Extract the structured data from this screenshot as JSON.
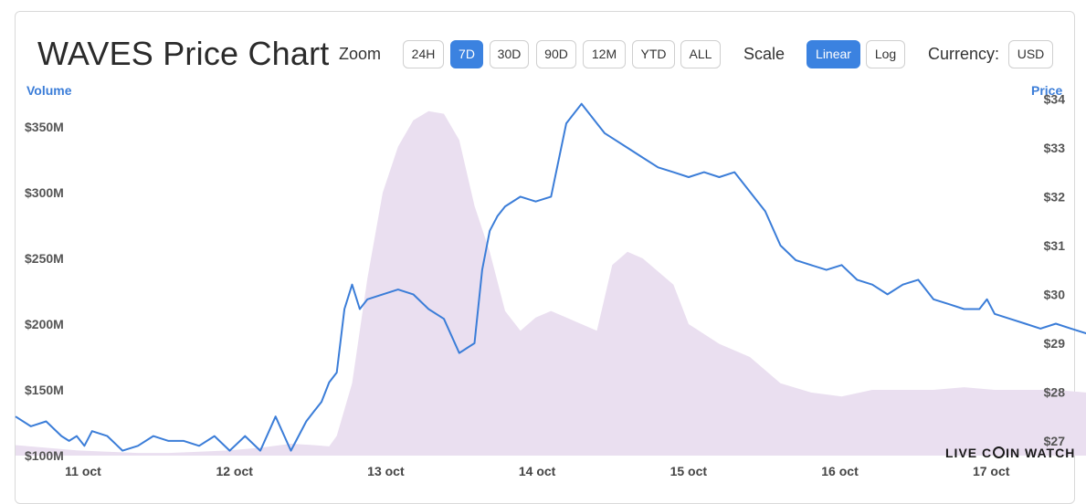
{
  "header": {
    "title": "WAVES Price Chart",
    "zoom_label": "Zoom",
    "zoom_options": [
      "24H",
      "7D",
      "30D",
      "90D",
      "12M",
      "YTD",
      "ALL"
    ],
    "zoom_selected": "7D",
    "scale_label": "Scale",
    "scale_options": [
      "Linear",
      "Log"
    ],
    "scale_selected": "Linear",
    "currency_label": "Currency:",
    "currency_value": "USD"
  },
  "brand": {
    "text_a": "LIVE C",
    "text_b": "IN WATCH"
  },
  "colors": {
    "price_line": "#3b7dd8",
    "volume_area": "#eadff0",
    "accent": "#3b82e0"
  },
  "chart_data": {
    "type": "line",
    "x_labels": [
      "11 oct",
      "12 oct",
      "13 oct",
      "14 oct",
      "15 oct",
      "16 oct",
      "17 oct"
    ],
    "left_axis": {
      "label": "Volume",
      "ticks": [
        "$100M",
        "$150M",
        "$200M",
        "$250M",
        "$300M",
        "$350M"
      ],
      "range": [
        100,
        375
      ],
      "unit": "M"
    },
    "right_axis": {
      "label": "Price",
      "ticks": [
        "$27",
        "$28",
        "$29",
        "$30",
        "$31",
        "$32",
        "$33",
        "$34"
      ],
      "range": [
        26.7,
        34.1
      ]
    },
    "series": [
      {
        "name": "Price",
        "axis": "right",
        "x": [
          10.0,
          10.1,
          10.2,
          10.3,
          10.35,
          10.4,
          10.45,
          10.5,
          10.6,
          10.7,
          10.8,
          10.9,
          11.0,
          11.1,
          11.2,
          11.3,
          11.4,
          11.5,
          11.6,
          11.7,
          11.8,
          11.9,
          11.95,
          12.0,
          12.05,
          12.1,
          12.15,
          12.2,
          12.25,
          12.3,
          12.4,
          12.5,
          12.6,
          12.7,
          12.8,
          12.9,
          13.0,
          13.05,
          13.1,
          13.15,
          13.2,
          13.3,
          13.4,
          13.5,
          13.6,
          13.7,
          13.8,
          13.85,
          13.9,
          14.0,
          14.1,
          14.2,
          14.3,
          14.4,
          14.5,
          14.6,
          14.7,
          14.8,
          14.9,
          15.0,
          15.1,
          15.2,
          15.3,
          15.4,
          15.5,
          15.6,
          15.7,
          15.8,
          15.9,
          16.0,
          16.1,
          16.2,
          16.3,
          16.35,
          16.4,
          16.5,
          16.6,
          16.7,
          16.8,
          16.9,
          17.0,
          17.1,
          17.2,
          17.3,
          17.4,
          17.5,
          17.6,
          17.7
        ],
        "values": [
          27.5,
          27.3,
          27.4,
          27.1,
          27.0,
          27.1,
          26.9,
          27.2,
          27.1,
          26.8,
          26.9,
          27.1,
          27.0,
          27.0,
          26.9,
          27.1,
          26.8,
          27.1,
          26.8,
          27.5,
          26.8,
          27.4,
          27.6,
          27.8,
          28.2,
          28.4,
          29.7,
          30.2,
          29.7,
          29.9,
          30.0,
          30.1,
          30.0,
          29.7,
          29.5,
          28.8,
          29.0,
          30.5,
          31.3,
          31.6,
          31.8,
          32.0,
          31.9,
          32.0,
          33.5,
          33.9,
          33.5,
          33.3,
          33.2,
          33.0,
          32.8,
          32.6,
          32.5,
          32.4,
          32.5,
          32.4,
          32.5,
          32.1,
          31.7,
          31.0,
          30.7,
          30.6,
          30.5,
          30.6,
          30.3,
          30.2,
          30.0,
          30.2,
          30.3,
          29.9,
          29.8,
          29.7,
          29.7,
          29.9,
          29.6,
          29.5,
          29.4,
          29.3,
          29.4,
          29.3,
          29.2,
          29.3,
          29.2,
          29.5,
          29.3,
          29.3,
          29.1,
          28.9
        ]
      },
      {
        "name": "Volume",
        "axis": "left",
        "x": [
          10.0,
          10.2,
          10.4,
          10.6,
          10.8,
          11.0,
          11.2,
          11.4,
          11.6,
          11.8,
          11.95,
          12.05,
          12.1,
          12.2,
          12.3,
          12.4,
          12.5,
          12.6,
          12.7,
          12.8,
          12.9,
          13.0,
          13.1,
          13.2,
          13.3,
          13.4,
          13.5,
          13.6,
          13.7,
          13.8,
          13.9,
          14.0,
          14.1,
          14.2,
          14.3,
          14.4,
          14.6,
          14.8,
          15.0,
          15.2,
          15.4,
          15.6,
          15.8,
          16.0,
          16.2,
          16.4,
          16.6,
          16.8,
          17.0,
          17.2,
          17.4,
          17.6,
          17.7
        ],
        "values": [
          108,
          106,
          104,
          103,
          102,
          102,
          103,
          104,
          106,
          109,
          108,
          107,
          115,
          155,
          235,
          300,
          335,
          355,
          362,
          360,
          340,
          290,
          255,
          210,
          195,
          205,
          210,
          205,
          200,
          195,
          245,
          255,
          250,
          240,
          230,
          200,
          185,
          175,
          155,
          148,
          145,
          150,
          150,
          150,
          152,
          150,
          150,
          150,
          148,
          145,
          145,
          143,
          143
        ]
      }
    ],
    "legend": "none",
    "grid": false
  }
}
